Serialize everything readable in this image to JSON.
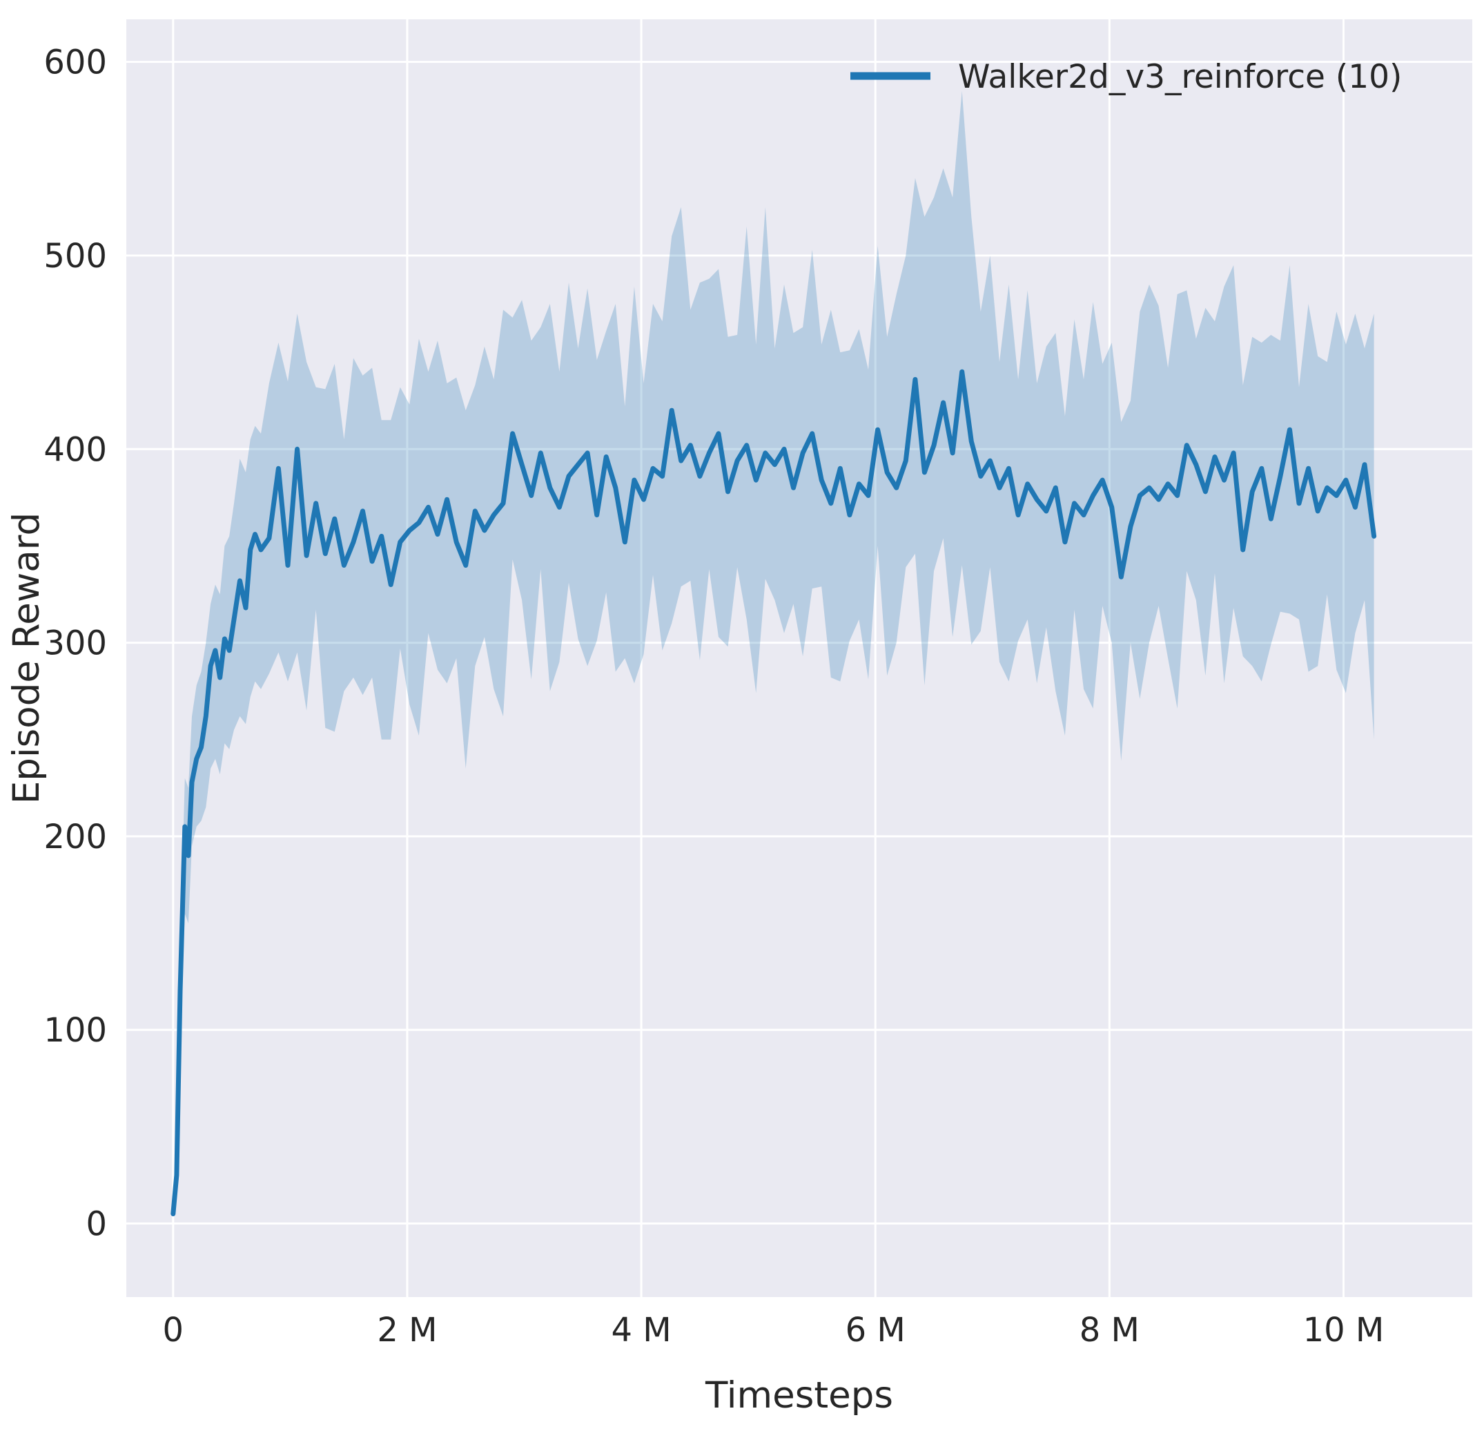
{
  "chart_data": {
    "type": "line",
    "title": "",
    "xlabel": "Timesteps",
    "ylabel": "Episode Reward",
    "xlim": [
      -0.4,
      11.1
    ],
    "ylim": [
      -38,
      622
    ],
    "x_unit": "millions of timesteps",
    "grid": true,
    "legend_position": "upper right",
    "xticks": {
      "values": [
        0,
        2,
        4,
        6,
        8,
        10
      ],
      "labels": [
        "0",
        "2 M",
        "4 M",
        "6 M",
        "8 M",
        "10 M"
      ]
    },
    "yticks": {
      "values": [
        0,
        100,
        200,
        300,
        400,
        500,
        600
      ],
      "labels": [
        "0",
        "100",
        "200",
        "300",
        "400",
        "500",
        "600"
      ]
    },
    "colors": {
      "line": "#1f77b4",
      "band": "#1f77b4",
      "band_opacity": 0.25,
      "plot_bg": "#eaeaf2",
      "grid": "#ffffff",
      "text": "#262626"
    },
    "series": [
      {
        "name": "Walker2d_v3_reinforce (10)",
        "x": [
          0.0,
          0.03,
          0.06,
          0.1,
          0.13,
          0.16,
          0.2,
          0.24,
          0.28,
          0.32,
          0.36,
          0.4,
          0.44,
          0.48,
          0.52,
          0.57,
          0.62,
          0.66,
          0.7,
          0.75,
          0.82,
          0.9,
          0.98,
          1.06,
          1.14,
          1.22,
          1.3,
          1.38,
          1.46,
          1.54,
          1.62,
          1.7,
          1.78,
          1.86,
          1.94,
          2.02,
          2.1,
          2.18,
          2.26,
          2.34,
          2.42,
          2.5,
          2.58,
          2.66,
          2.74,
          2.82,
          2.9,
          2.98,
          3.06,
          3.14,
          3.22,
          3.3,
          3.38,
          3.46,
          3.54,
          3.62,
          3.7,
          3.78,
          3.86,
          3.94,
          4.02,
          4.1,
          4.18,
          4.26,
          4.34,
          4.42,
          4.5,
          4.58,
          4.66,
          4.74,
          4.82,
          4.9,
          4.98,
          5.06,
          5.14,
          5.22,
          5.3,
          5.38,
          5.46,
          5.54,
          5.62,
          5.7,
          5.78,
          5.86,
          5.94,
          6.02,
          6.1,
          6.18,
          6.26,
          6.34,
          6.42,
          6.5,
          6.58,
          6.66,
          6.74,
          6.82,
          6.9,
          6.98,
          7.06,
          7.14,
          7.22,
          7.3,
          7.38,
          7.46,
          7.54,
          7.62,
          7.7,
          7.78,
          7.86,
          7.94,
          8.02,
          8.1,
          8.18,
          8.26,
          8.34,
          8.42,
          8.5,
          8.58,
          8.66,
          8.74,
          8.82,
          8.9,
          8.98,
          9.06,
          9.14,
          9.22,
          9.3,
          9.38,
          9.46,
          9.54,
          9.62,
          9.7,
          9.78,
          9.86,
          9.94,
          10.02,
          10.1,
          10.18,
          10.26
        ],
        "mean": [
          5,
          25,
          120,
          205,
          190,
          228,
          240,
          246,
          262,
          288,
          296,
          282,
          302,
          296,
          312,
          332,
          318,
          348,
          356,
          348,
          354,
          390,
          340,
          400,
          345,
          372,
          346,
          364,
          340,
          352,
          368,
          342,
          355,
          330,
          352,
          358,
          362,
          370,
          356,
          374,
          352,
          340,
          368,
          358,
          366,
          372,
          408,
          392,
          376,
          398,
          380,
          370,
          386,
          392,
          398,
          366,
          396,
          380,
          352,
          384,
          374,
          390,
          386,
          420,
          394,
          402,
          386,
          398,
          408,
          378,
          394,
          402,
          384,
          398,
          392,
          400,
          380,
          398,
          408,
          384,
          372,
          390,
          366,
          382,
          376,
          410,
          388,
          380,
          394,
          436,
          388,
          402,
          424,
          398,
          440,
          404,
          386,
          394,
          380,
          390,
          366,
          382,
          374,
          368,
          380,
          352,
          372,
          366,
          376,
          384,
          370,
          334,
          360,
          376,
          380,
          374,
          382,
          376,
          402,
          392,
          378,
          396,
          384,
          398,
          348,
          378,
          390,
          364,
          386,
          410,
          372,
          390,
          368,
          380,
          376,
          384,
          370,
          392,
          355
        ],
        "low": [
          4,
          18,
          100,
          160,
          155,
          195,
          205,
          208,
          215,
          235,
          240,
          232,
          248,
          245,
          255,
          262,
          258,
          272,
          280,
          276,
          284,
          295,
          280,
          295,
          265,
          317,
          256,
          254,
          275,
          282,
          273,
          282,
          250,
          250,
          297,
          268,
          252,
          305,
          286,
          279,
          292,
          235,
          288,
          303,
          276,
          262,
          343,
          322,
          281,
          338,
          275,
          290,
          331,
          302,
          288,
          301,
          326,
          285,
          292,
          279,
          294,
          335,
          296,
          310,
          329,
          332,
          291,
          338,
          303,
          298,
          339,
          312,
          274,
          333,
          322,
          305,
          320,
          293,
          328,
          329,
          282,
          280,
          301,
          312,
          281,
          350,
          283,
          300,
          339,
          346,
          278,
          337,
          354,
          303,
          340,
          299,
          306,
          339,
          290,
          280,
          301,
          312,
          279,
          308,
          275,
          252,
          317,
          276,
          266,
          319,
          300,
          239,
          300,
          271,
          300,
          319,
          292,
          266,
          337,
          322,
          283,
          336,
          279,
          318,
          293,
          288,
          280,
          299,
          316,
          315,
          312,
          285,
          288,
          325,
          286,
          274,
          305,
          322,
          250
        ],
        "high": [
          6,
          32,
          140,
          230,
          225,
          262,
          278,
          285,
          300,
          320,
          330,
          325,
          350,
          355,
          372,
          395,
          388,
          405,
          412,
          408,
          434,
          455,
          435,
          470,
          445,
          432,
          431,
          444,
          405,
          447,
          438,
          442,
          415,
          415,
          432,
          423,
          457,
          440,
          456,
          434,
          437,
          420,
          433,
          453,
          436,
          472,
          468,
          477,
          456,
          463,
          475,
          440,
          486,
          452,
          483,
          446,
          461,
          475,
          422,
          484,
          434,
          475,
          466,
          510,
          525,
          472,
          486,
          488,
          493,
          458,
          459,
          515,
          454,
          525,
          452,
          485,
          460,
          463,
          503,
          454,
          472,
          450,
          451,
          462,
          441,
          505,
          458,
          480,
          500,
          540,
          520,
          530,
          545,
          530,
          585,
          520,
          471,
          500,
          445,
          485,
          436,
          482,
          434,
          453,
          460,
          417,
          467,
          436,
          476,
          444,
          455,
          414,
          425,
          471,
          485,
          474,
          442,
          480,
          482,
          457,
          473,
          466,
          484,
          495,
          433,
          458,
          455,
          459,
          456,
          495,
          432,
          475,
          448,
          445,
          471,
          454,
          470,
          452,
          470
        ]
      }
    ]
  }
}
